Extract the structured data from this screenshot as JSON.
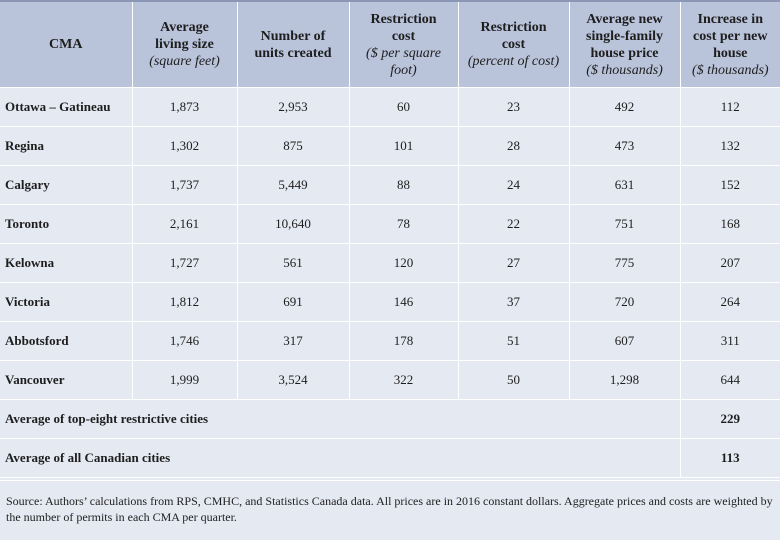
{
  "headers": {
    "cma": "CMA",
    "living_size": {
      "title1": "Average",
      "title2": "living size",
      "unit": "(square feet)"
    },
    "units": {
      "title1": "Number of",
      "title2": "units created"
    },
    "cost_sqft": {
      "title1": "Restriction",
      "title2": "cost",
      "unit1": "($ per square",
      "unit2": "foot)"
    },
    "cost_pct": {
      "title1": "Restriction",
      "title2": "cost",
      "unit": "(percent of cost)"
    },
    "price": {
      "title1": "Average new",
      "title2": "single-family",
      "title3": "house price",
      "unit": "($ thousands)"
    },
    "increase": {
      "title1": "Increase in",
      "title2": "cost per new",
      "title3": "house",
      "unit": "($ thousands)"
    }
  },
  "rows": [
    {
      "cma": "Ottawa – Gatineau",
      "living_size": "1,873",
      "units": "2,953",
      "cost_sqft": "60",
      "cost_pct": "23",
      "price": "492",
      "increase": "112"
    },
    {
      "cma": "Regina",
      "living_size": "1,302",
      "units": "875",
      "cost_sqft": "101",
      "cost_pct": "28",
      "price": "473",
      "increase": "132"
    },
    {
      "cma": "Calgary",
      "living_size": "1,737",
      "units": "5,449",
      "cost_sqft": "88",
      "cost_pct": "24",
      "price": "631",
      "increase": "152"
    },
    {
      "cma": "Toronto",
      "living_size": "2,161",
      "units": "10,640",
      "cost_sqft": "78",
      "cost_pct": "22",
      "price": "751",
      "increase": "168"
    },
    {
      "cma": "Kelowna",
      "living_size": "1,727",
      "units": "561",
      "cost_sqft": "120",
      "cost_pct": "27",
      "price": "775",
      "increase": "207"
    },
    {
      "cma": "Victoria",
      "living_size": "1,812",
      "units": "691",
      "cost_sqft": "146",
      "cost_pct": "37",
      "price": "720",
      "increase": "264"
    },
    {
      "cma": "Abbotsford",
      "living_size": "1,746",
      "units": "317",
      "cost_sqft": "178",
      "cost_pct": "51",
      "price": "607",
      "increase": "311"
    },
    {
      "cma": "Vancouver",
      "living_size": "1,999",
      "units": "3,524",
      "cost_sqft": "322",
      "cost_pct": "50",
      "price": "1,298",
      "increase": "644"
    }
  ],
  "averages": [
    {
      "label": "Average of top-eight restrictive cities",
      "value": "229"
    },
    {
      "label": "Average of all Canadian cities",
      "value": "113"
    }
  ],
  "source": "Source: Authors’ calculations from RPS, CMHC, and Statistics Canada data. All prices are in 2016 constant dollars. Aggregate prices and costs are weighted by the number of permits in each CMA per quarter.",
  "colors": {
    "header_bg": "#b9c3da",
    "row_bg": "#e5e9f2",
    "grid": "#ffffff",
    "top_rule": "#8b97b5"
  }
}
